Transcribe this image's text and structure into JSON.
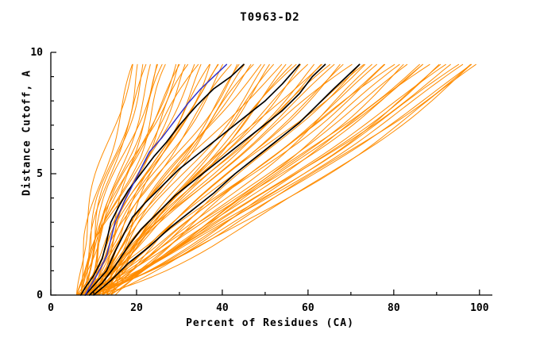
{
  "chart_data": {
    "type": "line",
    "title": "T0963-D2",
    "xlabel": "Percent of Residues (CA)",
    "ylabel": "Distance Cutoff, A",
    "xlim": [
      0,
      103
    ],
    "ylim": [
      0,
      10
    ],
    "xticks": [
      0,
      20,
      40,
      60,
      80,
      100
    ],
    "yticks": [
      0,
      5,
      10
    ],
    "xtick_minor_step": 10,
    "ytick_minor_step": 1,
    "grid": false,
    "legend_position": "none",
    "colors": {
      "ensemble": "#FF8C00",
      "highlight": "#000000",
      "special": "#3333CC",
      "axis": "#000000"
    },
    "special_series": {
      "name": "blue-model",
      "points": [
        [
          8,
          0
        ],
        [
          9,
          0.3
        ],
        [
          11,
          0.9
        ],
        [
          13,
          1.6
        ],
        [
          14,
          2.3
        ],
        [
          15,
          3.0
        ],
        [
          17,
          3.8
        ],
        [
          19,
          4.5
        ],
        [
          21,
          5.2
        ],
        [
          23,
          5.9
        ],
        [
          26,
          6.5
        ],
        [
          29,
          7.2
        ],
        [
          32,
          7.9
        ],
        [
          35,
          8.5
        ],
        [
          38,
          9.0
        ],
        [
          41,
          9.5
        ]
      ]
    },
    "highlight_series": [
      {
        "name": "black-model-1",
        "points": [
          [
            7,
            0
          ],
          [
            8,
            0.3
          ],
          [
            10,
            0.8
          ],
          [
            12,
            1.5
          ],
          [
            13,
            2.2
          ],
          [
            14,
            3.0
          ],
          [
            16,
            3.7
          ],
          [
            18,
            4.3
          ],
          [
            21,
            5.0
          ],
          [
            24,
            5.7
          ],
          [
            27,
            6.3
          ],
          [
            30,
            7.0
          ],
          [
            34,
            7.8
          ],
          [
            38,
            8.5
          ],
          [
            42,
            9.0
          ],
          [
            45,
            9.5
          ]
        ]
      },
      {
        "name": "black-model-2",
        "points": [
          [
            8,
            0
          ],
          [
            10,
            0.4
          ],
          [
            13,
            1.0
          ],
          [
            15,
            1.8
          ],
          [
            17,
            2.5
          ],
          [
            19,
            3.2
          ],
          [
            22,
            3.8
          ],
          [
            26,
            4.5
          ],
          [
            30,
            5.2
          ],
          [
            35,
            5.9
          ],
          [
            40,
            6.6
          ],
          [
            45,
            7.3
          ],
          [
            50,
            8.0
          ],
          [
            54,
            8.7
          ],
          [
            58,
            9.5
          ]
        ]
      },
      {
        "name": "black-model-3",
        "points": [
          [
            9,
            0
          ],
          [
            12,
            0.5
          ],
          [
            15,
            1.2
          ],
          [
            18,
            2.0
          ],
          [
            21,
            2.7
          ],
          [
            25,
            3.4
          ],
          [
            29,
            4.1
          ],
          [
            34,
            4.8
          ],
          [
            39,
            5.5
          ],
          [
            44,
            6.2
          ],
          [
            49,
            6.9
          ],
          [
            54,
            7.6
          ],
          [
            58,
            8.3
          ],
          [
            61,
            9.0
          ],
          [
            64,
            9.5
          ]
        ]
      },
      {
        "name": "black-model-4",
        "points": [
          [
            10,
            0
          ],
          [
            14,
            0.6
          ],
          [
            18,
            1.3
          ],
          [
            23,
            2.0
          ],
          [
            28,
            2.8
          ],
          [
            33,
            3.5
          ],
          [
            38,
            4.2
          ],
          [
            43,
            5.0
          ],
          [
            48,
            5.7
          ],
          [
            53,
            6.4
          ],
          [
            58,
            7.1
          ],
          [
            62,
            7.8
          ],
          [
            66,
            8.5
          ],
          [
            69,
            9.0
          ],
          [
            72,
            9.5
          ]
        ]
      }
    ],
    "ensemble_series": {
      "name": "orange-models",
      "count": 72,
      "y_top": 9.5,
      "param_format": [
        "start_x",
        "end_x",
        "shape_power",
        "wiggle_amp",
        "wiggle_phase"
      ],
      "curves": [
        [
          6,
          19,
          1.4,
          1.0,
          0.3
        ],
        [
          7,
          21,
          1.2,
          1.3,
          1.1
        ],
        [
          8,
          23,
          1.5,
          0.8,
          2.0
        ],
        [
          6,
          25,
          1.1,
          1.1,
          0.7
        ],
        [
          9,
          26,
          1.3,
          1.2,
          1.6
        ],
        [
          7,
          28,
          1.0,
          1.4,
          2.4
        ],
        [
          10,
          29,
          1.2,
          0.9,
          0.2
        ],
        [
          8,
          31,
          1.4,
          1.0,
          1.9
        ],
        [
          6,
          33,
          1.1,
          1.5,
          2.8
        ],
        [
          11,
          34,
          1.3,
          1.1,
          0.9
        ],
        [
          7,
          36,
          1.0,
          1.2,
          1.4
        ],
        [
          9,
          38,
          1.2,
          1.0,
          2.2
        ],
        [
          12,
          39,
          1.4,
          0.8,
          0.5
        ],
        [
          8,
          41,
          1.1,
          1.3,
          1.2
        ],
        [
          10,
          43,
          1.3,
          1.1,
          2.6
        ],
        [
          6,
          44,
          1.0,
          1.4,
          0.8
        ],
        [
          13,
          46,
          1.2,
          0.9,
          1.7
        ],
        [
          9,
          48,
          1.1,
          1.2,
          2.9
        ],
        [
          11,
          49,
          1.3,
          1.0,
          0.4
        ],
        [
          7,
          51,
          0.95,
          1.3,
          1.5
        ],
        [
          14,
          53,
          1.15,
          1.1,
          2.3
        ],
        [
          8,
          54,
          1.25,
          0.9,
          0.6
        ],
        [
          10,
          56,
          1.0,
          1.2,
          1.8
        ],
        [
          12,
          58,
          1.2,
          1.0,
          2.7
        ],
        [
          6,
          59,
          0.9,
          1.4,
          1.0
        ],
        [
          9,
          61,
          1.1,
          1.1,
          2.1
        ],
        [
          13,
          63,
          1.3,
          0.8,
          0.1
        ],
        [
          7,
          64,
          1.0,
          1.3,
          1.3
        ],
        [
          11,
          66,
          1.15,
          1.0,
          2.5
        ],
        [
          8,
          68,
          0.9,
          1.2,
          0.9
        ],
        [
          14,
          69,
          1.1,
          0.9,
          1.6
        ],
        [
          10,
          71,
          1.2,
          1.1,
          2.8
        ],
        [
          6,
          73,
          0.95,
          1.3,
          0.2
        ],
        [
          12,
          74,
          1.1,
          1.0,
          1.9
        ],
        [
          9,
          76,
          0.85,
          1.2,
          2.4
        ],
        [
          15,
          78,
          1.05,
          0.9,
          0.7
        ],
        [
          7,
          79,
          0.9,
          1.3,
          1.4
        ],
        [
          11,
          81,
          1.1,
          1.0,
          2.6
        ],
        [
          8,
          83,
          0.8,
          1.2,
          1.1
        ],
        [
          13,
          84,
          1.0,
          0.9,
          2.0
        ],
        [
          10,
          86,
          0.9,
          1.1,
          0.4
        ],
        [
          6,
          88,
          0.85,
          1.3,
          1.7
        ],
        [
          14,
          89,
          1.0,
          1.0,
          2.9
        ],
        [
          9,
          91,
          0.8,
          1.2,
          0.8
        ],
        [
          12,
          93,
          0.95,
          0.9,
          2.2
        ],
        [
          7,
          94,
          0.85,
          1.1,
          1.2
        ],
        [
          10,
          96,
          0.9,
          1.0,
          2.5
        ],
        [
          8,
          98,
          0.8,
          1.2,
          0.5
        ],
        [
          13,
          99,
          0.9,
          0.9,
          1.8
        ],
        [
          6,
          100,
          0.75,
          1.1,
          2.7
        ],
        [
          7,
          20,
          1.5,
          1.0,
          2.1
        ],
        [
          8,
          22,
          1.3,
          1.2,
          0.9
        ],
        [
          9,
          24,
          1.2,
          0.9,
          1.5
        ],
        [
          10,
          27,
          1.4,
          1.1,
          2.3
        ],
        [
          6,
          30,
          1.1,
          1.3,
          0.6
        ],
        [
          11,
          32,
          1.2,
          1.0,
          1.2
        ],
        [
          7,
          35,
          1.35,
          0.9,
          2.8
        ],
        [
          12,
          37,
          1.1,
          1.2,
          0.3
        ],
        [
          8,
          40,
          1.25,
          1.0,
          1.6
        ],
        [
          9,
          45,
          1.05,
          1.1,
          2.0
        ],
        [
          10,
          47,
          1.15,
          0.9,
          0.8
        ],
        [
          11,
          52,
          1.0,
          1.2,
          1.4
        ],
        [
          13,
          57,
          1.1,
          1.0,
          2.6
        ],
        [
          8,
          62,
          0.95,
          1.1,
          1.0
        ],
        [
          9,
          67,
          1.05,
          0.9,
          2.2
        ],
        [
          10,
          72,
          0.9,
          1.2,
          0.4
        ],
        [
          12,
          77,
          1.0,
          1.0,
          1.8
        ],
        [
          7,
          82,
          0.85,
          1.1,
          2.9
        ],
        [
          11,
          87,
          0.9,
          0.9,
          0.7
        ],
        [
          9,
          92,
          0.8,
          1.1,
          1.9
        ],
        [
          8,
          97,
          0.85,
          1.0,
          2.4
        ],
        [
          10,
          99,
          0.75,
          1.2,
          1.3
        ]
      ]
    }
  }
}
